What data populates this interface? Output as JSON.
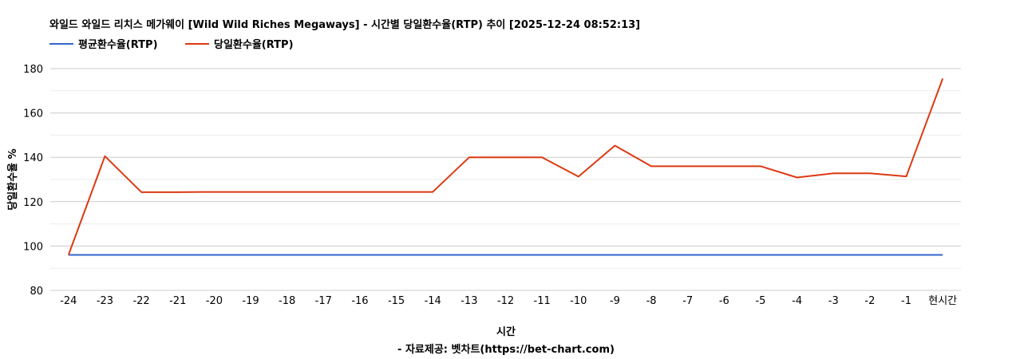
{
  "chart_data": {
    "type": "line",
    "title": "와일드 와일드 리치스 메가웨이 [Wild Wild Riches Megaways] - 시간별 당일환수율(RTP) 추이 [2025-12-24 08:52:13]",
    "xlabel": "시간",
    "ylabel": "당일환수율 %",
    "source": "- 자료제공: 벳차트(https://bet-chart.com)",
    "categories": [
      "-24",
      "-23",
      "-22",
      "-21",
      "-20",
      "-19",
      "-18",
      "-17",
      "-16",
      "-15",
      "-14",
      "-13",
      "-12",
      "-11",
      "-10",
      "-9",
      "-8",
      "-7",
      "-6",
      "-5",
      "-4",
      "-3",
      "-2",
      "-1",
      "현시간"
    ],
    "ylim": [
      80,
      180
    ],
    "yticks": [
      80,
      100,
      120,
      140,
      160,
      180
    ],
    "grid": true,
    "legend_position": "top-left",
    "series": [
      {
        "name": "평균환수율(RTP)",
        "color": "#3366cc",
        "values": [
          96,
          96,
          96,
          96,
          96,
          96,
          96,
          96,
          96,
          96,
          96,
          96,
          96,
          96,
          96,
          96,
          96,
          96,
          96,
          96,
          96,
          96,
          96,
          96,
          96
        ]
      },
      {
        "name": "당일환수율(RTP)",
        "color": "#dc3912",
        "values": [
          96,
          140.5,
          124.3,
          124.3,
          124.4,
          124.4,
          124.4,
          124.4,
          124.4,
          124.4,
          124.4,
          140,
          140,
          140,
          131.3,
          145.3,
          136,
          136,
          136,
          136,
          130.9,
          132.8,
          132.8,
          131.4,
          175.5
        ]
      }
    ]
  }
}
